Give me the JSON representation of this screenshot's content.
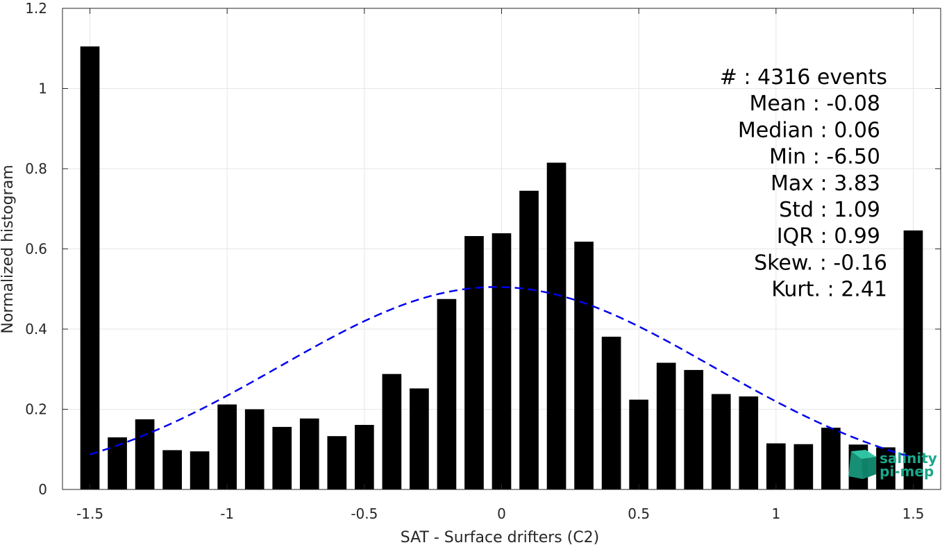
{
  "chart_data": {
    "type": "bar",
    "xlabel": "SAT - Surface drifters (C2)",
    "ylabel": "Normalized histogram",
    "xlim": [
      -1.6,
      1.6
    ],
    "ylim": [
      0,
      1.2
    ],
    "xticks": [
      -1.5,
      -1,
      -0.5,
      0,
      0.5,
      1,
      1.5
    ],
    "xtick_labels": [
      "-1.5",
      "-1",
      "-0.5",
      "0",
      "0.5",
      "1",
      "1.5"
    ],
    "yticks": [
      0,
      0.2,
      0.4,
      0.6,
      0.8,
      1,
      1.2
    ],
    "ytick_labels": [
      "0",
      "0.2",
      "0.4",
      "0.6",
      "0.8",
      "1",
      "1.2"
    ],
    "grid": true,
    "bar_color": "#000000",
    "bar_width": 0.07,
    "bars": {
      "x": [
        -1.5,
        -1.4,
        -1.3,
        -1.2,
        -1.1,
        -1.0,
        -0.9,
        -0.8,
        -0.7,
        -0.6,
        -0.5,
        -0.4,
        -0.3,
        -0.2,
        -0.1,
        0.0,
        0.1,
        0.2,
        0.3,
        0.4,
        0.5,
        0.6,
        0.7,
        0.8,
        0.9,
        1.0,
        1.1,
        1.2,
        1.3,
        1.4,
        1.5
      ],
      "values": [
        1.105,
        0.13,
        0.175,
        0.098,
        0.095,
        0.212,
        0.2,
        0.156,
        0.177,
        0.133,
        0.161,
        0.288,
        0.252,
        0.475,
        0.632,
        0.639,
        0.745,
        0.815,
        0.618,
        0.381,
        0.224,
        0.316,
        0.298,
        0.238,
        0.232,
        0.115,
        0.113,
        0.154,
        0.112,
        0.105,
        0.646
      ]
    },
    "fit_curve": {
      "style": "dashed",
      "color": "#0000ee",
      "x_range": [
        -1.5,
        1.5
      ],
      "mean": -0.02,
      "std": 0.79,
      "peak": 0.505
    },
    "stats": [
      "#  : 4316 events",
      "Mean : -0.08",
      "Median : 0.06",
      "Min : -6.50",
      "Max : 3.83",
      "Std : 1.09",
      "IQR : 0.99",
      "Skew. : -0.16",
      "Kurt. : 2.41"
    ]
  },
  "logo": {
    "line1": "salinity",
    "line2": "pi-mep",
    "color": "#1aa88a"
  }
}
